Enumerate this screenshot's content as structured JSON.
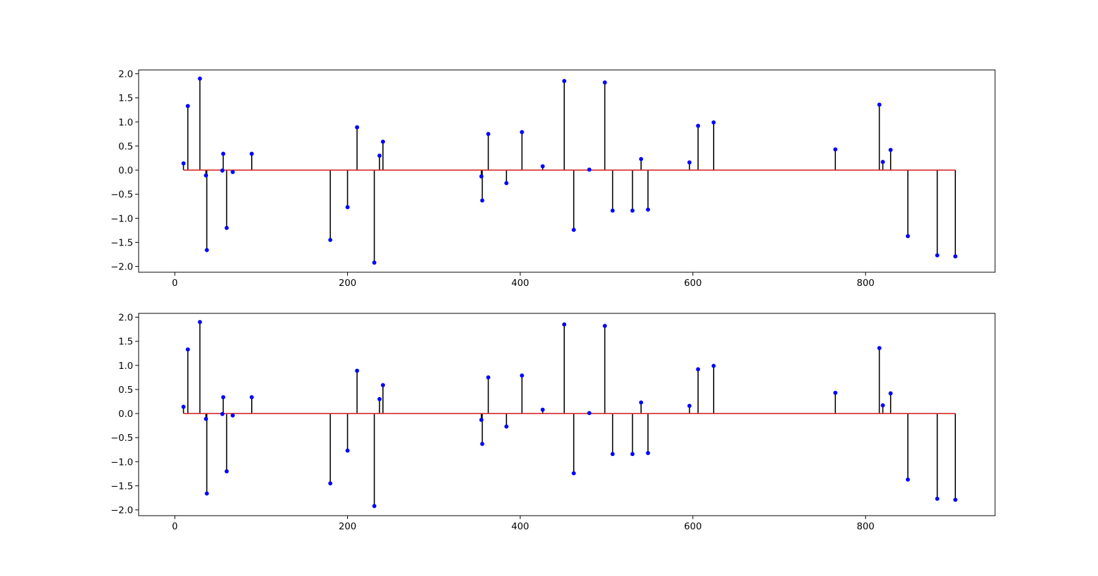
{
  "chart_data": [
    {
      "type": "stem",
      "xlim": [
        -42,
        950
      ],
      "ylim": [
        -2.12,
        2.08
      ],
      "xticks": [
        0,
        200,
        400,
        600,
        800
      ],
      "xtick_labels": [
        "0",
        "200",
        "400",
        "600",
        "800"
      ],
      "yticks": [
        2.0,
        1.5,
        1.0,
        0.5,
        0.0,
        -0.5,
        -1.0,
        -1.5,
        -2.0
      ],
      "ytick_labels": [
        "2.0",
        "1.5",
        "1.0",
        "0.5",
        "0.0",
        "−0.5",
        "−1.0",
        "−1.5",
        "−2.0"
      ],
      "baseline": 0,
      "colors": {
        "stem": "#000000",
        "marker": "#0000ff",
        "baseline": "#d62728"
      },
      "points": [
        {
          "x": 10,
          "y": 0.14
        },
        {
          "x": 15,
          "y": 1.33
        },
        {
          "x": 29,
          "y": 1.9
        },
        {
          "x": 36,
          "y": -0.11
        },
        {
          "x": 37,
          "y": -1.66
        },
        {
          "x": 55,
          "y": -0.01
        },
        {
          "x": 56,
          "y": 0.34
        },
        {
          "x": 60,
          "y": -1.2
        },
        {
          "x": 67,
          "y": -0.04
        },
        {
          "x": 89,
          "y": 0.34
        },
        {
          "x": 180,
          "y": -1.45
        },
        {
          "x": 200,
          "y": -0.77
        },
        {
          "x": 211,
          "y": 0.89
        },
        {
          "x": 231,
          "y": -1.92
        },
        {
          "x": 237,
          "y": 0.3
        },
        {
          "x": 241,
          "y": 0.59
        },
        {
          "x": 355,
          "y": -0.13
        },
        {
          "x": 356,
          "y": -0.63
        },
        {
          "x": 363,
          "y": 0.75
        },
        {
          "x": 384,
          "y": -0.27
        },
        {
          "x": 402,
          "y": 0.79
        },
        {
          "x": 426,
          "y": 0.08
        },
        {
          "x": 451,
          "y": 1.85
        },
        {
          "x": 462,
          "y": -1.24
        },
        {
          "x": 480,
          "y": 0.01
        },
        {
          "x": 498,
          "y": 1.82
        },
        {
          "x": 507,
          "y": -0.84
        },
        {
          "x": 530,
          "y": -0.84
        },
        {
          "x": 540,
          "y": 0.23
        },
        {
          "x": 548,
          "y": -0.82
        },
        {
          "x": 596,
          "y": 0.16
        },
        {
          "x": 606,
          "y": 0.92
        },
        {
          "x": 624,
          "y": 0.99
        },
        {
          "x": 765,
          "y": 0.43
        },
        {
          "x": 816,
          "y": 1.36
        },
        {
          "x": 820,
          "y": 0.17
        },
        {
          "x": 829,
          "y": 0.42
        },
        {
          "x": 849,
          "y": -1.37
        },
        {
          "x": 883,
          "y": -1.77
        },
        {
          "x": 904,
          "y": -1.79
        }
      ]
    },
    {
      "type": "stem",
      "xlim": [
        -42,
        950
      ],
      "ylim": [
        -2.12,
        2.08
      ],
      "xticks": [
        0,
        200,
        400,
        600,
        800
      ],
      "xtick_labels": [
        "0",
        "200",
        "400",
        "600",
        "800"
      ],
      "yticks": [
        2.0,
        1.5,
        1.0,
        0.5,
        0.0,
        -0.5,
        -1.0,
        -1.5,
        -2.0
      ],
      "ytick_labels": [
        "2.0",
        "1.5",
        "1.0",
        "0.5",
        "0.0",
        "−0.5",
        "−1.0",
        "−1.5",
        "−2.0"
      ],
      "baseline": 0,
      "colors": {
        "stem": "#000000",
        "marker": "#0000ff",
        "baseline": "#d62728"
      },
      "points": [
        {
          "x": 10,
          "y": 0.14
        },
        {
          "x": 15,
          "y": 1.33
        },
        {
          "x": 29,
          "y": 1.9
        },
        {
          "x": 36,
          "y": -0.11
        },
        {
          "x": 37,
          "y": -1.66
        },
        {
          "x": 55,
          "y": -0.01
        },
        {
          "x": 56,
          "y": 0.34
        },
        {
          "x": 60,
          "y": -1.2
        },
        {
          "x": 67,
          "y": -0.04
        },
        {
          "x": 89,
          "y": 0.34
        },
        {
          "x": 180,
          "y": -1.45
        },
        {
          "x": 200,
          "y": -0.77
        },
        {
          "x": 211,
          "y": 0.89
        },
        {
          "x": 231,
          "y": -1.92
        },
        {
          "x": 237,
          "y": 0.3
        },
        {
          "x": 241,
          "y": 0.59
        },
        {
          "x": 355,
          "y": -0.13
        },
        {
          "x": 356,
          "y": -0.63
        },
        {
          "x": 363,
          "y": 0.75
        },
        {
          "x": 384,
          "y": -0.27
        },
        {
          "x": 402,
          "y": 0.79
        },
        {
          "x": 426,
          "y": 0.08
        },
        {
          "x": 451,
          "y": 1.85
        },
        {
          "x": 462,
          "y": -1.24
        },
        {
          "x": 480,
          "y": 0.01
        },
        {
          "x": 498,
          "y": 1.82
        },
        {
          "x": 507,
          "y": -0.84
        },
        {
          "x": 530,
          "y": -0.84
        },
        {
          "x": 540,
          "y": 0.23
        },
        {
          "x": 548,
          "y": -0.82
        },
        {
          "x": 596,
          "y": 0.16
        },
        {
          "x": 606,
          "y": 0.92
        },
        {
          "x": 624,
          "y": 0.99
        },
        {
          "x": 765,
          "y": 0.43
        },
        {
          "x": 816,
          "y": 1.36
        },
        {
          "x": 820,
          "y": 0.17
        },
        {
          "x": 829,
          "y": 0.42
        },
        {
          "x": 849,
          "y": -1.37
        },
        {
          "x": 883,
          "y": -1.77
        },
        {
          "x": 904,
          "y": -1.79
        }
      ]
    }
  ]
}
